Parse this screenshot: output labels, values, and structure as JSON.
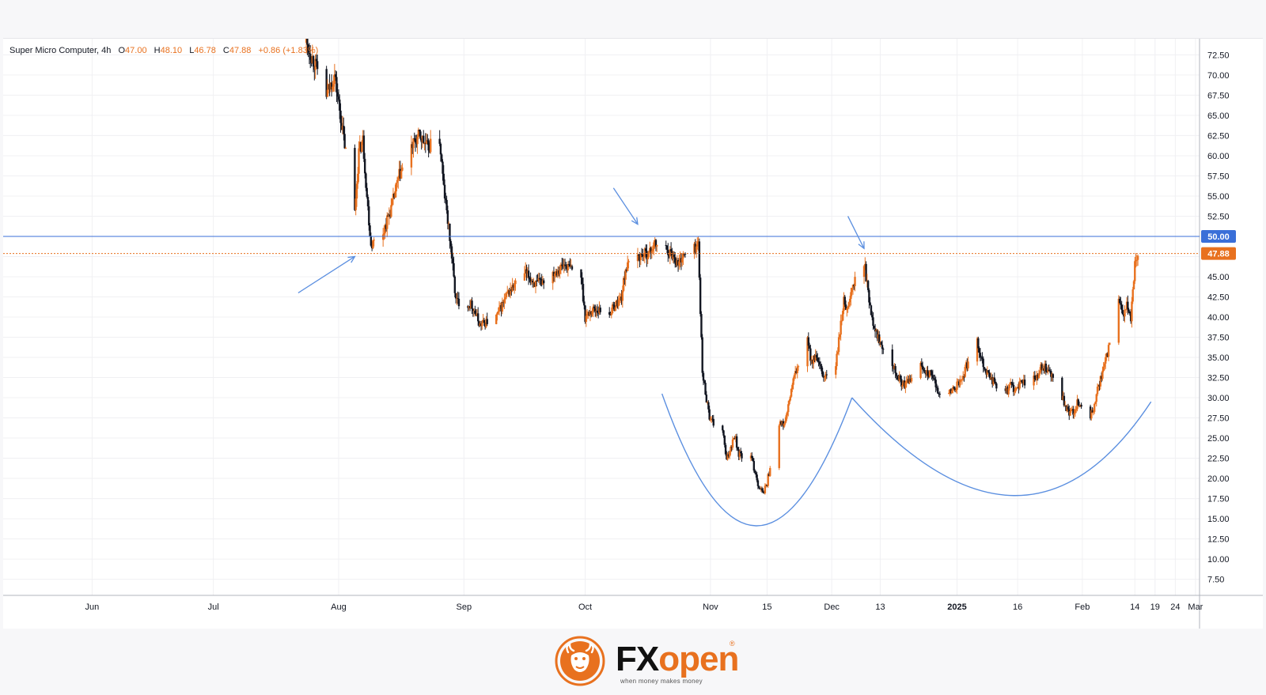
{
  "legend": {
    "symbol": "Super Micro Computer",
    "interval": "4h",
    "open_label": "O",
    "open": "47.00",
    "high_label": "H",
    "high": "48.10",
    "low_label": "L",
    "low": "46.78",
    "close_label": "C",
    "close": "47.88",
    "change": "+0.86 (+1.83%)"
  },
  "brand": {
    "name_part1": "FX",
    "name_part2": "open",
    "registered": "®",
    "tagline": "when money makes money"
  },
  "colors": {
    "up": "#e8711f",
    "down": "#131722",
    "level_line": "#3a6fd8",
    "annotation": "#5b8fe0",
    "price_line": "#e8711f",
    "grid": "#f0f0f3"
  },
  "chart_data": {
    "type": "candlestick",
    "interval": "4h",
    "y_axis": {
      "ticks": [
        7.5,
        10,
        12.5,
        15,
        17.5,
        20,
        22.5,
        25,
        27.5,
        30,
        32.5,
        35,
        37.5,
        40,
        42.5,
        45,
        47.5,
        50,
        52.5,
        55,
        57.5,
        60,
        62.5,
        65,
        67.5,
        70,
        72.5
      ],
      "tick_labels": [
        "7.50",
        "10.00",
        "12.50",
        "15.00",
        "17.50",
        "20.00",
        "22.50",
        "25.00",
        "27.50",
        "30.00",
        "32.50",
        "35.00",
        "37.50",
        "40.00",
        "42.50",
        "45.00",
        "47.50",
        "50.00",
        "52.50",
        "55.00",
        "57.50",
        "60.00",
        "62.50",
        "65.00",
        "67.50",
        "70.00",
        "72.50"
      ],
      "range": [
        5.5,
        74.5
      ]
    },
    "x_axis": {
      "range": [
        "2024-05-10",
        "2025-03-02"
      ],
      "ticks": [
        {
          "date": "2024-06-01",
          "label": "Jun"
        },
        {
          "date": "2024-07-01",
          "label": "Jul"
        },
        {
          "date": "2024-08-01",
          "label": "Aug"
        },
        {
          "date": "2024-09-01",
          "label": "Sep"
        },
        {
          "date": "2024-10-01",
          "label": "Oct"
        },
        {
          "date": "2024-11-01",
          "label": "Nov"
        },
        {
          "date": "2024-11-15",
          "label": "15"
        },
        {
          "date": "2024-12-01",
          "label": "Dec"
        },
        {
          "date": "2024-12-13",
          "label": "13"
        },
        {
          "date": "2025-01-01",
          "label": "2025",
          "bold": true
        },
        {
          "date": "2025-01-16",
          "label": "16"
        },
        {
          "date": "2025-02-01",
          "label": "Feb"
        },
        {
          "date": "2025-02-14",
          "label": "14"
        },
        {
          "date": "2025-02-19",
          "label": "19"
        },
        {
          "date": "2025-02-24",
          "label": "24"
        },
        {
          "date": "2025-03-01",
          "label": "Mar"
        }
      ]
    },
    "horizontal_levels": [
      {
        "value": 50.0,
        "label": "50.00",
        "style": "solid",
        "color": "#3a6fd8"
      },
      {
        "value": 47.88,
        "label": "47.88",
        "style": "dotted",
        "color": "#e8711f"
      }
    ],
    "price_path": [
      [
        "2024-07-24",
        74.0
      ],
      [
        "2024-07-26",
        71.5
      ],
      [
        "2024-07-29",
        67.5
      ],
      [
        "2024-07-31",
        70.0
      ],
      [
        "2024-08-01",
        66.5
      ],
      [
        "2024-08-02",
        63.0
      ],
      [
        "2024-08-05",
        53.0
      ],
      [
        "2024-08-06",
        60.5
      ],
      [
        "2024-08-07",
        62.0
      ],
      [
        "2024-08-08",
        55.0
      ],
      [
        "2024-08-09",
        49.0
      ],
      [
        "2024-08-12",
        50.5
      ],
      [
        "2024-08-14",
        53.5
      ],
      [
        "2024-08-16",
        57.5
      ],
      [
        "2024-08-19",
        61.0
      ],
      [
        "2024-08-21",
        62.5
      ],
      [
        "2024-08-23",
        61.0
      ],
      [
        "2024-08-26",
        62.0
      ],
      [
        "2024-08-27",
        56.0
      ],
      [
        "2024-08-28",
        52.0
      ],
      [
        "2024-08-29",
        47.5
      ],
      [
        "2024-08-30",
        42.0
      ],
      [
        "2024-09-03",
        41.5
      ],
      [
        "2024-09-05",
        39.0
      ],
      [
        "2024-09-09",
        40.0
      ],
      [
        "2024-09-12",
        43.0
      ],
      [
        "2024-09-16",
        45.5
      ],
      [
        "2024-09-19",
        44.0
      ],
      [
        "2024-09-23",
        45.5
      ],
      [
        "2024-09-26",
        46.5
      ],
      [
        "2024-09-30",
        45.0
      ],
      [
        "2024-10-01",
        40.0
      ],
      [
        "2024-10-03",
        41.0
      ],
      [
        "2024-10-07",
        40.5
      ],
      [
        "2024-10-10",
        42.5
      ],
      [
        "2024-10-11",
        46.0
      ],
      [
        "2024-10-14",
        47.5
      ],
      [
        "2024-10-17",
        48.0
      ],
      [
        "2024-10-18",
        49.0
      ],
      [
        "2024-10-21",
        48.5
      ],
      [
        "2024-10-23",
        47.5
      ],
      [
        "2024-10-24",
        46.5
      ],
      [
        "2024-10-25",
        47.5
      ],
      [
        "2024-10-28",
        48.5
      ],
      [
        "2024-10-29",
        49.0
      ],
      [
        "2024-10-30",
        33.0
      ],
      [
        "2024-10-31",
        30.0
      ],
      [
        "2024-11-01",
        27.0
      ],
      [
        "2024-11-04",
        26.0
      ],
      [
        "2024-11-05",
        22.0
      ],
      [
        "2024-11-06",
        24.0
      ],
      [
        "2024-11-07",
        25.5
      ],
      [
        "2024-11-08",
        23.0
      ],
      [
        "2024-11-11",
        22.5
      ],
      [
        "2024-11-12",
        21.0
      ],
      [
        "2024-11-13",
        19.0
      ],
      [
        "2024-11-14",
        18.0
      ],
      [
        "2024-11-15",
        19.5
      ],
      [
        "2024-11-18",
        27.0
      ],
      [
        "2024-11-19",
        26.5
      ],
      [
        "2024-11-20",
        28.0
      ],
      [
        "2024-11-21",
        31.0
      ],
      [
        "2024-11-22",
        33.0
      ],
      [
        "2024-11-25",
        37.0
      ],
      [
        "2024-11-26",
        34.5
      ],
      [
        "2024-11-27",
        35.0
      ],
      [
        "2024-11-29",
        32.5
      ],
      [
        "2024-12-02",
        34.0
      ],
      [
        "2024-12-03",
        38.0
      ],
      [
        "2024-12-04",
        42.0
      ],
      [
        "2024-12-05",
        41.0
      ],
      [
        "2024-12-06",
        43.5
      ],
      [
        "2024-12-09",
        47.0
      ],
      [
        "2024-12-10",
        43.0
      ],
      [
        "2024-12-11",
        40.0
      ],
      [
        "2024-12-12",
        38.0
      ],
      [
        "2024-12-13",
        37.0
      ],
      [
        "2024-12-16",
        34.5
      ],
      [
        "2024-12-17",
        33.0
      ],
      [
        "2024-12-18",
        32.0
      ],
      [
        "2024-12-19",
        31.5
      ],
      [
        "2024-12-20",
        32.0
      ],
      [
        "2024-12-23",
        34.0
      ],
      [
        "2024-12-24",
        33.5
      ],
      [
        "2024-12-26",
        32.5
      ],
      [
        "2024-12-27",
        31.0
      ],
      [
        "2024-12-30",
        30.5
      ],
      [
        "2025-01-02",
        32.0
      ],
      [
        "2025-01-03",
        33.5
      ],
      [
        "2025-01-06",
        37.0
      ],
      [
        "2025-01-07",
        35.0
      ],
      [
        "2025-01-08",
        33.5
      ],
      [
        "2025-01-10",
        32.0
      ],
      [
        "2025-01-13",
        30.5
      ],
      [
        "2025-01-14",
        31.5
      ],
      [
        "2025-01-16",
        31.0
      ],
      [
        "2025-01-17",
        32.0
      ],
      [
        "2025-01-21",
        32.5
      ],
      [
        "2025-01-22",
        34.0
      ],
      [
        "2025-01-23",
        33.5
      ],
      [
        "2025-01-24",
        33.0
      ],
      [
        "2025-01-27",
        30.0
      ],
      [
        "2025-01-28",
        28.5
      ],
      [
        "2025-01-29",
        28.0
      ],
      [
        "2025-01-30",
        28.5
      ],
      [
        "2025-01-31",
        29.5
      ],
      [
        "2025-02-03",
        27.5
      ],
      [
        "2025-02-04",
        29.0
      ],
      [
        "2025-02-05",
        31.5
      ],
      [
        "2025-02-06",
        33.0
      ],
      [
        "2025-02-07",
        35.0
      ],
      [
        "2025-02-10",
        42.0
      ],
      [
        "2025-02-11",
        40.0
      ],
      [
        "2025-02-12",
        41.5
      ],
      [
        "2025-02-13",
        39.5
      ],
      [
        "2025-02-14",
        47.0
      ],
      [
        "2025-02-15",
        47.88
      ]
    ],
    "annotations": {
      "arrows": [
        {
          "from": [
            "2024-07-22",
            43.0
          ],
          "to": [
            "2024-08-05",
            47.5
          ]
        },
        {
          "from": [
            "2024-10-08",
            56.0
          ],
          "to": [
            "2024-10-14",
            51.5
          ]
        },
        {
          "from": [
            "2024-12-05",
            52.5
          ],
          "to": [
            "2024-12-09",
            48.5
          ]
        }
      ],
      "curves": [
        {
          "start": [
            "2024-10-20",
            30.5
          ],
          "control": [
            "2024-11-12",
            -2.0
          ],
          "end": [
            "2024-12-06",
            30.0
          ]
        },
        {
          "start": [
            "2024-12-06",
            30.0
          ],
          "control": [
            "2025-01-18",
            6.0
          ],
          "end": [
            "2025-02-18",
            29.5
          ]
        }
      ]
    }
  }
}
